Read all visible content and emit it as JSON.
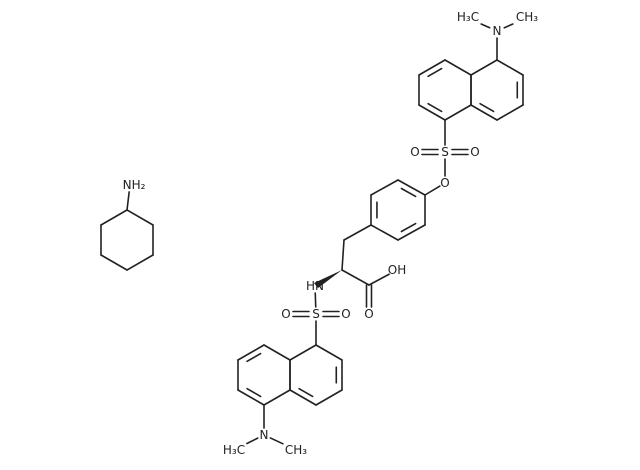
{
  "atoms": [
    {
      "label": "H₃C"
    },
    {
      "label": "N"
    },
    {
      "label": "CH₃"
    },
    {
      "label": "S"
    },
    {
      "label": "O"
    },
    {
      "label": "O"
    },
    {
      "label": "O"
    },
    {
      "label": "NH₂"
    },
    {
      "label": "HN"
    },
    {
      "label": "OH"
    },
    {
      "label": "O"
    },
    {
      "label": "S"
    },
    {
      "label": "O"
    },
    {
      "label": "O"
    },
    {
      "label": "N"
    },
    {
      "label": "H₃C"
    },
    {
      "label": "CH₃"
    }
  ]
}
